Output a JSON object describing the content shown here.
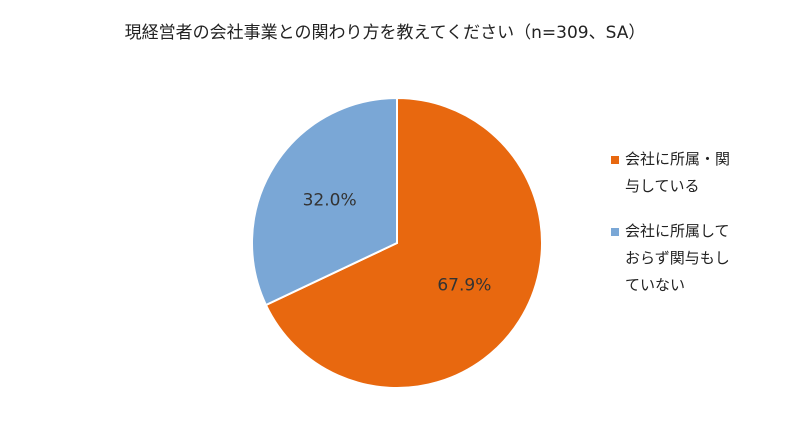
{
  "chart_data": {
    "type": "pie",
    "title": "現経営者の会社事業との関わり方を教えてください（n=309、SA）",
    "categories": [
      "会社に所属・関与している",
      "会社に所属しておらず関与もしていない"
    ],
    "values": [
      67.9,
      32.0
    ],
    "value_labels": [
      "67.9%",
      "32.0%"
    ],
    "colors": [
      "#e8680f",
      "#7aa7d6"
    ],
    "legend": "right"
  }
}
